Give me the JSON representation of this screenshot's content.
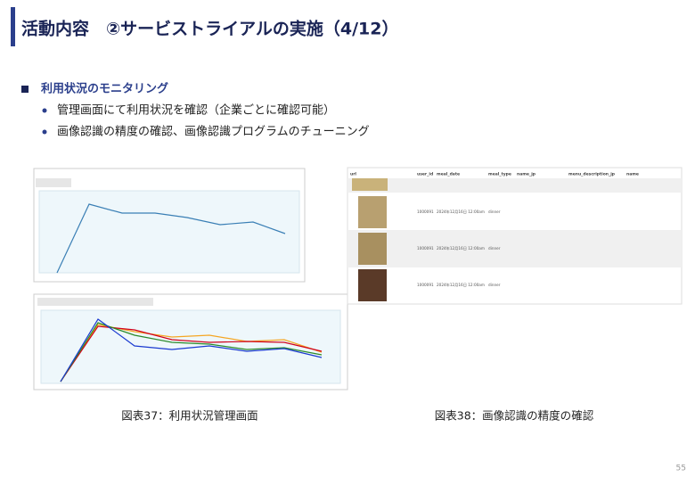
{
  "header": {
    "title": "活動内容　②サービストライアルの実施（4/12）"
  },
  "section": {
    "heading": "利用状況のモニタリング",
    "bullets": [
      "管理画面にて利用状況を確認（企業ごとに確認可能）",
      "画像認識の精度の確認、画像認識プログラムのチューニング"
    ]
  },
  "table": {
    "columns": [
      "url",
      "user_id",
      "meal_date",
      "meal_type",
      "name_jp",
      "menu_description_jp",
      "name"
    ],
    "rows": [
      [
        "1000091",
        "2024年12月16日 12:00am",
        "dinner"
      ],
      [
        "1000091",
        "2024年12月16日 12:00am",
        "dinner"
      ],
      [
        "1000091",
        "2024年12月16日 12:00am",
        "dinner"
      ]
    ]
  },
  "captions": [
    "図表37：利用状況管理画面",
    "図表38：画像認識の精度の確認"
  ],
  "page_number": "55"
}
